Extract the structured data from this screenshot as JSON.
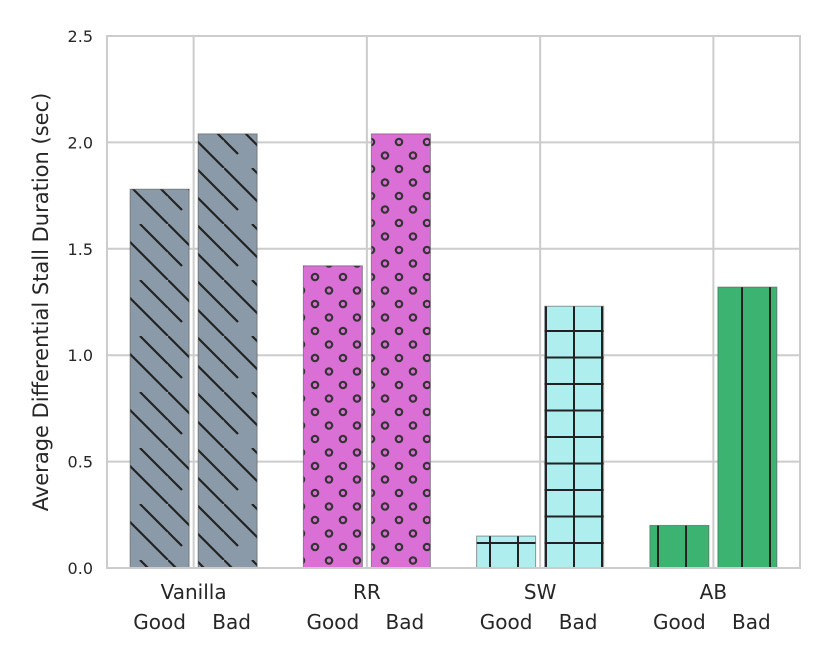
{
  "chart_data": {
    "type": "bar",
    "title": "",
    "xlabel": "",
    "ylabel": "Average Differential Stall Duration (sec)",
    "ylim": [
      0,
      2.5
    ],
    "yticks": [
      "0.0",
      "0.5",
      "1.0",
      "1.5",
      "2.0",
      "2.5"
    ],
    "grid": true,
    "groups": [
      {
        "name": "Vanilla",
        "color": "#8a9aa9",
        "pattern": "diagonal",
        "bars": [
          {
            "label": "Good",
            "value": 1.78
          },
          {
            "label": "Bad",
            "value": 2.04
          }
        ]
      },
      {
        "name": "RR",
        "color": "#da70d6",
        "pattern": "dots",
        "bars": [
          {
            "label": "Good",
            "value": 1.42
          },
          {
            "label": "Bad",
            "value": 2.04
          }
        ]
      },
      {
        "name": "SW",
        "color": "#aeeeee",
        "pattern": "grid",
        "bars": [
          {
            "label": "Good",
            "value": 0.15
          },
          {
            "label": "Bad",
            "value": 1.23
          }
        ]
      },
      {
        "name": "AB",
        "color": "#3cb371",
        "pattern": "vertical",
        "bars": [
          {
            "label": "Good",
            "value": 0.2
          },
          {
            "label": "Bad",
            "value": 1.32
          }
        ]
      }
    ]
  }
}
